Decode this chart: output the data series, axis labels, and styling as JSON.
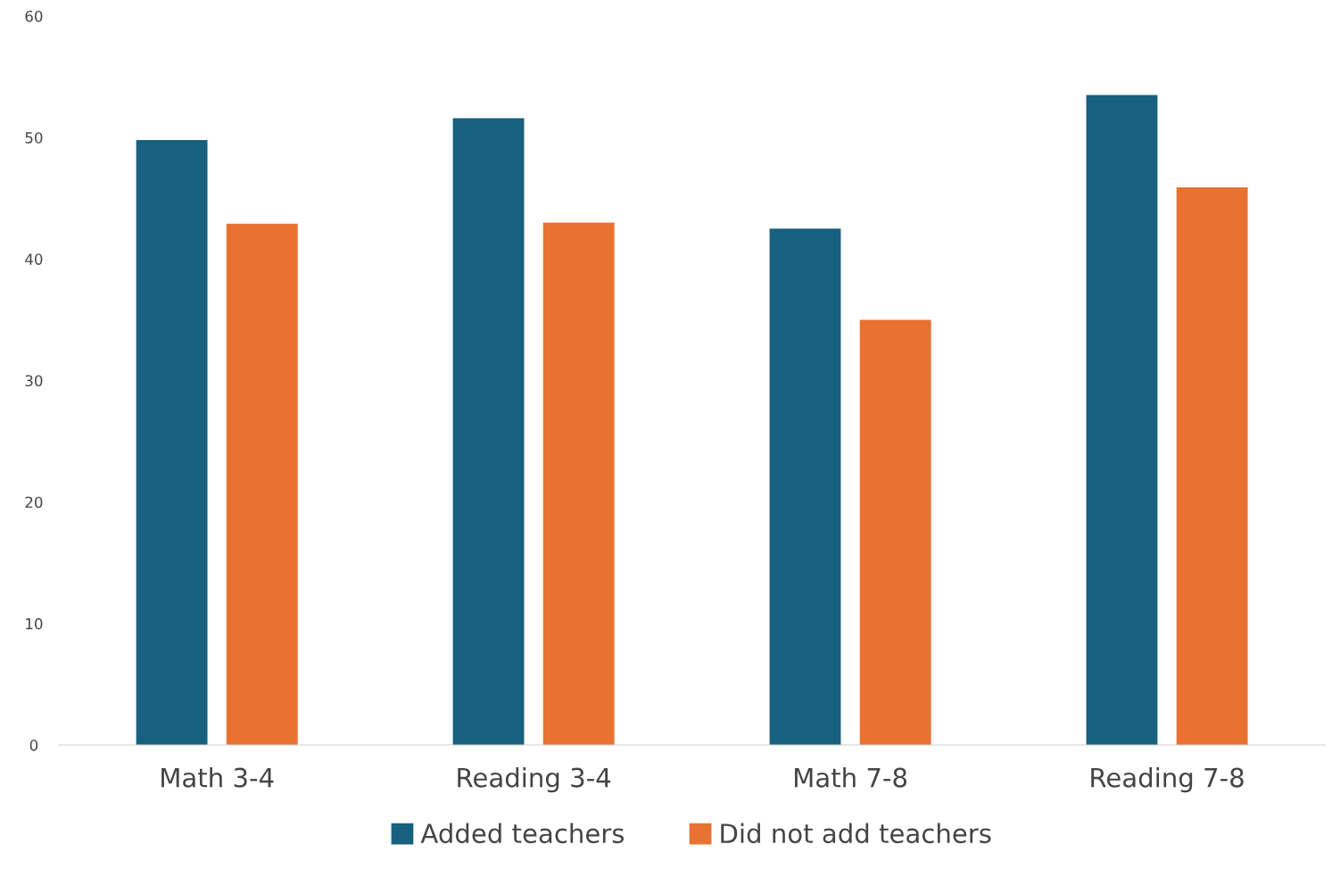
{
  "chart_data": {
    "type": "bar",
    "categories": [
      "Math 3-4",
      "Reading 3-4",
      "Math 7-8",
      "Reading 7-8"
    ],
    "series": [
      {
        "name": "Added teachers",
        "color": "#17607f",
        "values": [
          49.8,
          51.6,
          42.5,
          53.5
        ]
      },
      {
        "name": "Did not add teachers",
        "color": "#e97132",
        "values": [
          42.9,
          43.0,
          35.0,
          45.9
        ]
      }
    ],
    "ylim": [
      0,
      60
    ],
    "yticks": [
      0,
      10,
      20,
      30,
      40,
      50,
      60
    ],
    "grid": false,
    "legend": "bottom"
  }
}
